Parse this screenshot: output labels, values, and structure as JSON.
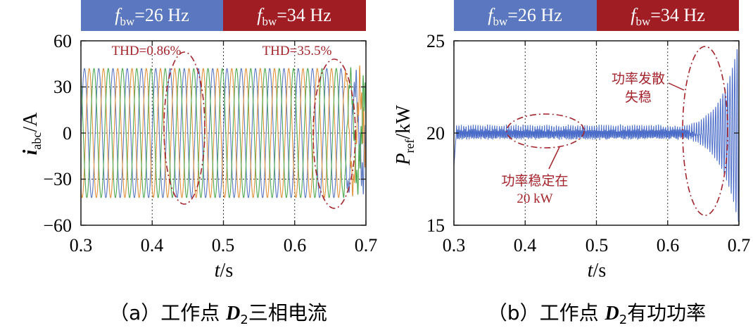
{
  "colors": {
    "banner_low": "#5b77bf",
    "banner_high": "#a01d23",
    "phase_a": "#5b77bf",
    "phase_b": "#e0913a",
    "phase_c": "#4da84f",
    "power": "#4a6cc8",
    "annotation": "#a4242c"
  },
  "chart_data": [
    {
      "id": "a",
      "type": "line",
      "title": "",
      "banners": [
        {
          "sym": "f",
          "sub": "bw",
          "value": "=26 Hz",
          "range": [
            0.3,
            0.5
          ]
        },
        {
          "sym": "f",
          "sub": "bw",
          "value": "=34 Hz",
          "range": [
            0.5,
            0.7
          ]
        }
      ],
      "xlabel_sym": "t",
      "xlabel_unit": "/s",
      "ylabel_sym": "i",
      "ylabel_sub": "abc",
      "ylabel_unit": "/A",
      "xlim": [
        0.3,
        0.7
      ],
      "ylim": [
        -60,
        60
      ],
      "xticks": [
        "0.3",
        "0.4",
        "0.5",
        "0.6",
        "0.7"
      ],
      "yticks": [
        "60",
        "30",
        "0",
        "−30",
        "−60"
      ],
      "ytick_values": [
        60,
        30,
        0,
        -30,
        -60
      ],
      "dotted_grid_x": [
        0.4,
        0.5,
        0.6
      ],
      "dotted_grid_y": [
        30,
        0,
        -30
      ],
      "series": [
        {
          "name": "i_a",
          "amplitude": 42,
          "frequency_hz": 50,
          "phase_deg": 0
        },
        {
          "name": "i_b",
          "amplitude": 42,
          "frequency_hz": 50,
          "phase_deg": -120
        },
        {
          "name": "i_c",
          "amplitude": 42,
          "frequency_hz": 50,
          "phase_deg": 120
        }
      ],
      "distortion_onset_s": 0.665,
      "annotations": [
        {
          "text": "THD=0.86%",
          "ellipse_t": [
            0.425,
            0.48
          ]
        },
        {
          "text": "THD=35.5%",
          "ellipse_t": [
            0.63,
            0.69
          ]
        }
      ],
      "caption_prefix": "（a）工作点 ",
      "caption_sym": "D",
      "caption_sub": "2",
      "caption_suffix": "三相电流"
    },
    {
      "id": "b",
      "type": "line",
      "title": "",
      "banners": [
        {
          "sym": "f",
          "sub": "bw",
          "value": "=26 Hz",
          "range": [
            0.3,
            0.5
          ]
        },
        {
          "sym": "f",
          "sub": "bw",
          "value": "=34 Hz",
          "range": [
            0.5,
            0.7
          ]
        }
      ],
      "xlabel_sym": "t",
      "xlabel_unit": "/s",
      "ylabel_sym": "P",
      "ylabel_sub": "ref",
      "ylabel_unit": "/kW",
      "xlim": [
        0.3,
        0.7
      ],
      "ylim": [
        15,
        25
      ],
      "xticks": [
        "0.3",
        "0.4",
        "0.5",
        "0.6",
        "0.7"
      ],
      "yticks": [
        "25",
        "20",
        "15"
      ],
      "ytick_values": [
        25,
        20,
        15
      ],
      "dotted_grid_x": [
        0.4,
        0.5,
        0.6
      ],
      "dotted_grid_y": [],
      "series": [
        {
          "name": "P_ref",
          "steady_value_kw": 20,
          "ripple_kw": 0.35,
          "divergence_onset_s": 0.62
        }
      ],
      "annotations": [
        {
          "line1": "功率稳定在",
          "line2": "20 kW"
        },
        {
          "line1": "功率发散",
          "line2": "失稳"
        }
      ],
      "caption_prefix": "（b）工作点 ",
      "caption_sym": "D",
      "caption_sub": "2",
      "caption_suffix": "有功功率"
    }
  ]
}
